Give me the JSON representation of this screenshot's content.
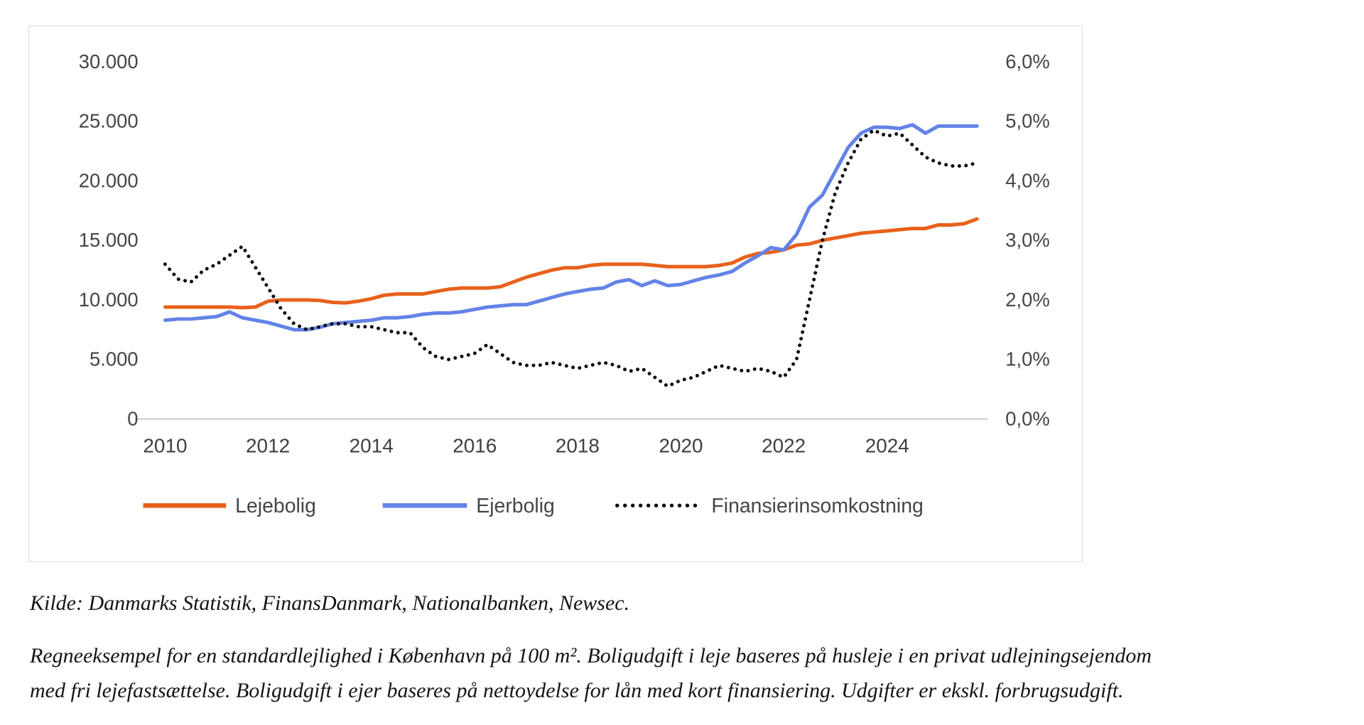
{
  "chart": {
    "left_ticks": [
      "30.000",
      "25.000",
      "20.000",
      "15.000",
      "10.000",
      "5.000",
      "0"
    ],
    "right_ticks": [
      "6,0%",
      "5,0%",
      "4,0%",
      "3,0%",
      "2,0%",
      "1,0%",
      "0,0%"
    ],
    "x_ticks": [
      "2010",
      "2012",
      "2014",
      "2016",
      "2018",
      "2020",
      "2022",
      "2024"
    ]
  },
  "chart_data": {
    "type": "line",
    "x_range": [
      2010,
      2025.75
    ],
    "left_axis": {
      "min": 0,
      "max": 30000,
      "tick_step": 5000
    },
    "right_axis": {
      "min": 0,
      "max": 6,
      "tick_step": 1,
      "unit": "%"
    },
    "grid": false,
    "legend_position": "bottom",
    "x": [
      2010,
      2010.25,
      2010.5,
      2010.75,
      2011,
      2011.25,
      2011.5,
      2011.75,
      2012,
      2012.25,
      2012.5,
      2012.75,
      2013,
      2013.25,
      2013.5,
      2013.75,
      2014,
      2014.25,
      2014.5,
      2014.75,
      2015,
      2015.25,
      2015.5,
      2015.75,
      2016,
      2016.25,
      2016.5,
      2016.75,
      2017,
      2017.25,
      2017.5,
      2017.75,
      2018,
      2018.25,
      2018.5,
      2018.75,
      2019,
      2019.25,
      2019.5,
      2019.75,
      2020,
      2020.25,
      2020.5,
      2020.75,
      2021,
      2021.25,
      2021.5,
      2021.75,
      2022,
      2022.25,
      2022.5,
      2022.75,
      2023,
      2023.25,
      2023.5,
      2023.75,
      2024,
      2024.25,
      2024.5,
      2024.75,
      2025,
      2025.25,
      2025.5,
      2025.75
    ],
    "series": [
      {
        "name": "Lejebolig",
        "axis": "left",
        "color": "#E8611C",
        "style": "solid",
        "values": [
          9400,
          9400,
          9400,
          9400,
          9400,
          9400,
          9350,
          9400,
          9900,
          10000,
          10000,
          10000,
          9950,
          9800,
          9750,
          9900,
          10100,
          10400,
          10500,
          10500,
          10500,
          10700,
          10900,
          11000,
          11000,
          11000,
          11100,
          11500,
          11900,
          12200,
          12500,
          12700,
          12700,
          12900,
          13000,
          13000,
          13000,
          13000,
          12900,
          12800,
          12800,
          12800,
          12800,
          12900,
          13100,
          13600,
          13900,
          14000,
          14200,
          14600,
          14700,
          15000,
          15200,
          15400,
          15600,
          15700,
          15800,
          15900,
          16000,
          16000,
          16300,
          16300,
          16400,
          16800
        ]
      },
      {
        "name": "Ejerbolig",
        "axis": "left",
        "color": "#6383E7",
        "style": "solid",
        "values": [
          8300,
          8400,
          8400,
          8500,
          8600,
          9000,
          8500,
          8300,
          8100,
          7800,
          7500,
          7500,
          7700,
          8000,
          8100,
          8200,
          8300,
          8500,
          8500,
          8600,
          8800,
          8900,
          8900,
          9000,
          9200,
          9400,
          9500,
          9600,
          9600,
          9900,
          10200,
          10500,
          10700,
          10900,
          11000,
          11500,
          11700,
          11200,
          11600,
          11200,
          11300,
          11600,
          11900,
          12100,
          12400,
          13100,
          13700,
          14400,
          14200,
          15500,
          17800,
          18800,
          20800,
          22800,
          24000,
          24500,
          24500,
          24400,
          24700,
          24000,
          24600,
          24600,
          24600,
          24600
        ]
      },
      {
        "name": "Finansierinsomkostning",
        "axis": "right",
        "color": "#0a0a0a",
        "style": "dotted",
        "values": [
          2.6,
          2.35,
          2.3,
          2.5,
          2.6,
          2.75,
          2.9,
          2.55,
          2.2,
          1.85,
          1.6,
          1.5,
          1.55,
          1.6,
          1.6,
          1.55,
          1.55,
          1.5,
          1.45,
          1.45,
          1.2,
          1.05,
          1.0,
          1.05,
          1.1,
          1.25,
          1.1,
          0.95,
          0.9,
          0.9,
          0.95,
          0.9,
          0.85,
          0.9,
          0.95,
          0.9,
          0.8,
          0.85,
          0.7,
          0.55,
          0.65,
          0.7,
          0.8,
          0.9,
          0.85,
          0.8,
          0.85,
          0.8,
          0.7,
          1.0,
          2.0,
          3.0,
          3.8,
          4.3,
          4.7,
          4.85,
          4.75,
          4.8,
          4.6,
          4.4,
          4.3,
          4.25,
          4.25,
          4.3
        ]
      }
    ]
  },
  "footer": {
    "source": "Kilde: Danmarks Statistik, FinansDanmark, Nationalbanken, Newsec.",
    "note_line1": "Regneeksempel for en standardlejlighed i København på 100 m². Boligudgift i leje baseres på husleje i en privat udlejningsejendom",
    "note_line2": "med fri lejefastsættelse. Boligudgift i ejer baseres på nettoydelse for lån med kort finansiering. Udgifter er ekskl. forbrugsudgift."
  }
}
